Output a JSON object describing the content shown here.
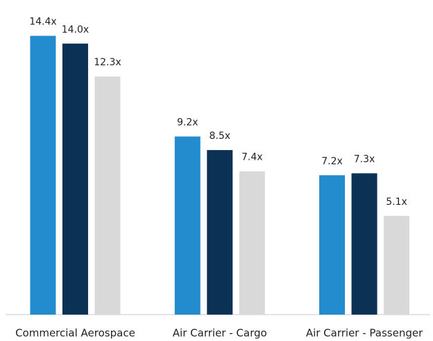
{
  "chart_data": {
    "type": "bar",
    "categories": [
      "Commercial Aerospace",
      "Air Carrier - Cargo",
      "Air Carrier - Passenger"
    ],
    "series": [
      {
        "color": "#228ccf",
        "values": [
          14.4,
          9.2,
          7.2
        ],
        "value_labels": [
          "14.4x",
          "9.2x",
          "7.2x"
        ]
      },
      {
        "color": "#0b3154",
        "values": [
          14.0,
          8.5,
          7.3
        ],
        "value_labels": [
          "14.0x",
          "8.5x",
          "7.3x"
        ]
      },
      {
        "color": "#d9d9d9",
        "values": [
          12.3,
          7.4,
          5.1
        ],
        "value_labels": [
          "12.3x",
          "7.4x",
          "5.1x"
        ]
      }
    ],
    "ylim": [
      0,
      16
    ]
  }
}
